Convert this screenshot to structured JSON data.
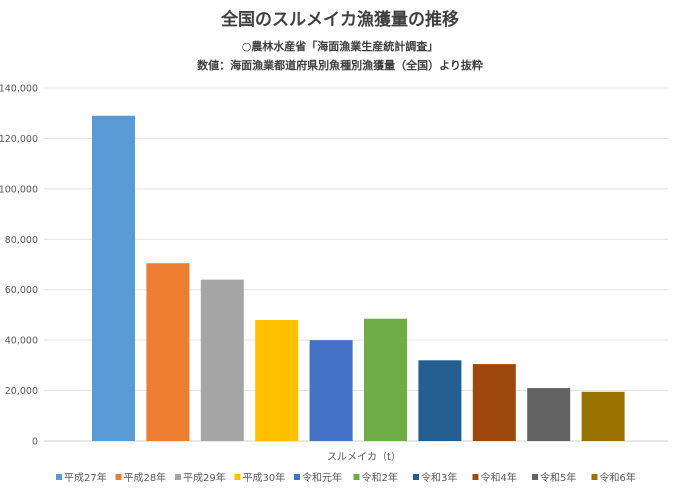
{
  "chart_data": {
    "type": "bar",
    "title": "全国のスルメイカ漁獲量の推移",
    "subtitle_lines": [
      "○農林水産省「海面漁業生産統計調査」",
      "数値：海面漁業都道府県別魚種別漁獲量（全国）より抜粋"
    ],
    "categories": [
      "スルメイカ（t）"
    ],
    "xlabel": "",
    "ylabel": "",
    "ylim": [
      0,
      140000
    ],
    "yticks": [
      0,
      20000,
      40000,
      60000,
      80000,
      100000,
      120000,
      140000
    ],
    "ytick_labels": [
      "0",
      "20,000",
      "40,000",
      "60,000",
      "80,000",
      "100,000",
      "120,000",
      "140,000"
    ],
    "grid": true,
    "legend_position": "bottom",
    "series": [
      {
        "name": "平成27年",
        "values": [
          129000
        ],
        "color": "#5B9BD5"
      },
      {
        "name": "平成28年",
        "values": [
          70500
        ],
        "color": "#ED7D31"
      },
      {
        "name": "平成29年",
        "values": [
          64000
        ],
        "color": "#A5A5A5"
      },
      {
        "name": "平成30年",
        "values": [
          48000
        ],
        "color": "#FFC000"
      },
      {
        "name": "令和元年",
        "values": [
          40000
        ],
        "color": "#4472C4"
      },
      {
        "name": "令和2年",
        "values": [
          48500
        ],
        "color": "#70AD47"
      },
      {
        "name": "令和3年",
        "values": [
          32000
        ],
        "color": "#255E91"
      },
      {
        "name": "令和4年",
        "values": [
          30500
        ],
        "color": "#9E480E"
      },
      {
        "name": "令和5年",
        "values": [
          21000
        ],
        "color": "#636363"
      },
      {
        "name": "令和6年",
        "values": [
          19500
        ],
        "color": "#997300"
      }
    ]
  }
}
